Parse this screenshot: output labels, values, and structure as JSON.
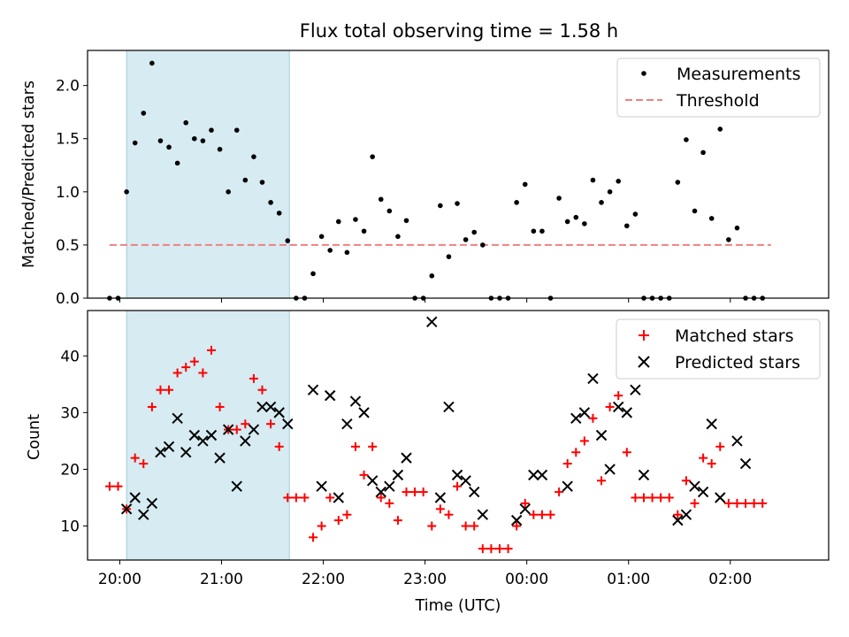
{
  "figure": {
    "title": "Flux total observing time = 1.58 h",
    "xlabel": "Time (UTC)"
  },
  "chart_data": [
    {
      "type": "scatter",
      "panel": "top",
      "ylabel": "Matched/Predicted stars",
      "xlim": [
        "19:41",
        "02:58"
      ],
      "ylim": [
        0,
        2.33
      ],
      "ytick_labels": [
        "0.0",
        "0.5",
        "1.0",
        "1.5",
        "2.0"
      ],
      "ytick_values": [
        0,
        0.5,
        1.0,
        1.5,
        2.0
      ],
      "xtick_labels": [
        "20:00",
        "21:00",
        "22:00",
        "23:00",
        "00:00",
        "01:00",
        "02:00"
      ],
      "shaded_span": [
        "20:04",
        "21:40"
      ],
      "shade_color": "#add8e6",
      "legend_placement": "top-right",
      "series": [
        {
          "name": "Measurements",
          "marker": "dot",
          "color": "#000000",
          "x": [
            "19:54",
            "19:59",
            "20:04",
            "20:09",
            "20:14",
            "20:19",
            "20:24",
            "20:29",
            "20:34",
            "20:39",
            "20:44",
            "20:49",
            "20:54",
            "20:59",
            "21:04",
            "21:09",
            "21:14",
            "21:19",
            "21:24",
            "21:29",
            "21:34",
            "21:39",
            "21:44",
            "21:49",
            "21:54",
            "21:59",
            "22:04",
            "22:09",
            "22:14",
            "22:19",
            "22:24",
            "22:29",
            "22:34",
            "22:39",
            "22:44",
            "22:49",
            "22:54",
            "22:59",
            "23:04",
            "23:09",
            "23:14",
            "23:19",
            "23:24",
            "23:29",
            "23:34",
            "23:39",
            "23:44",
            "23:49",
            "23:54",
            "23:59",
            "00:04",
            "00:09",
            "00:14",
            "00:19",
            "00:24",
            "00:29",
            "00:34",
            "00:39",
            "00:44",
            "00:49",
            "00:54",
            "00:59",
            "01:04",
            "01:09",
            "01:14",
            "01:19",
            "01:24",
            "01:29",
            "01:34",
            "01:39",
            "01:44",
            "01:49",
            "01:54",
            "01:59",
            "02:04",
            "02:09",
            "02:14",
            "02:19"
          ],
          "y": [
            0,
            0,
            1.0,
            1.46,
            1.74,
            2.21,
            1.48,
            1.42,
            1.27,
            1.65,
            1.5,
            1.48,
            1.58,
            1.4,
            1.0,
            1.58,
            1.11,
            1.33,
            1.09,
            0.9,
            0.8,
            0.54,
            0,
            0,
            0.23,
            0.58,
            0.45,
            0.72,
            0.43,
            0.74,
            0.63,
            1.33,
            0.93,
            0.82,
            0.58,
            0.73,
            0,
            0,
            0.21,
            0.87,
            0.39,
            0.89,
            0.55,
            0.62,
            0.5,
            0,
            0,
            0,
            0.9,
            1.07,
            0.63,
            0.63,
            0,
            0.94,
            0.72,
            0.76,
            0.7,
            1.11,
            0.9,
            1.0,
            1.1,
            0.68,
            0.79,
            0,
            0,
            0,
            0,
            1.09,
            1.49,
            0.82,
            1.37,
            0.75,
            1.59,
            0.55,
            0.66,
            0,
            0,
            0
          ]
        },
        {
          "name": "Threshold",
          "style": "dashed",
          "color": "#f08080",
          "x": [
            "19:54",
            "02:24"
          ],
          "y": [
            0.5,
            0.5
          ]
        }
      ]
    },
    {
      "type": "scatter",
      "panel": "bottom",
      "ylabel": "Count",
      "xlim": [
        "19:41",
        "02:58"
      ],
      "ylim": [
        4,
        48
      ],
      "ytick_labels": [
        "10",
        "20",
        "30",
        "40"
      ],
      "ytick_values": [
        10,
        20,
        30,
        40
      ],
      "xtick_labels": [
        "20:00",
        "21:00",
        "22:00",
        "23:00",
        "00:00",
        "01:00",
        "02:00"
      ],
      "shaded_span": [
        "20:04",
        "21:40"
      ],
      "shade_color": "#add8e6",
      "legend_placement": "top-right",
      "series": [
        {
          "name": "Matched stars",
          "marker": "plus",
          "color": "#ff0000",
          "x": [
            "19:54",
            "19:59",
            "20:04",
            "20:09",
            "20:14",
            "20:19",
            "20:24",
            "20:29",
            "20:34",
            "20:39",
            "20:44",
            "20:49",
            "20:54",
            "20:59",
            "21:04",
            "21:09",
            "21:14",
            "21:19",
            "21:24",
            "21:29",
            "21:34",
            "21:39",
            "21:44",
            "21:49",
            "21:54",
            "21:59",
            "22:04",
            "22:09",
            "22:14",
            "22:19",
            "22:24",
            "22:29",
            "22:34",
            "22:39",
            "22:44",
            "22:49",
            "22:54",
            "22:59",
            "23:04",
            "23:09",
            "23:14",
            "23:19",
            "23:24",
            "23:29",
            "23:34",
            "23:39",
            "23:44",
            "23:49",
            "23:54",
            "23:59",
            "00:04",
            "00:09",
            "00:14",
            "00:19",
            "00:24",
            "00:29",
            "00:34",
            "00:39",
            "00:44",
            "00:49",
            "00:54",
            "00:59",
            "01:04",
            "01:09",
            "01:14",
            "01:19",
            "01:24",
            "01:29",
            "01:34",
            "01:39",
            "01:44",
            "01:49",
            "01:54",
            "01:59",
            "02:04",
            "02:09",
            "02:14",
            "02:19"
          ],
          "y": [
            17,
            17,
            13,
            22,
            21,
            31,
            34,
            34,
            37,
            38,
            39,
            37,
            41,
            31,
            27,
            27,
            28,
            36,
            34,
            28,
            24,
            15,
            15,
            15,
            8,
            10,
            15,
            11,
            12,
            24,
            19,
            24,
            15,
            14,
            11,
            16,
            16,
            16,
            10,
            13,
            12,
            17,
            10,
            10,
            6,
            6,
            6,
            6,
            10,
            14,
            12,
            12,
            12,
            16,
            21,
            23,
            25,
            29,
            18,
            31,
            33,
            23,
            15,
            15,
            15,
            15,
            15,
            12,
            18,
            14,
            22,
            21,
            24,
            14,
            14,
            14,
            14,
            14
          ]
        },
        {
          "name": "Predicted stars",
          "marker": "x",
          "color": "#000000",
          "x": [
            "20:04",
            "20:09",
            "20:14",
            "20:19",
            "20:24",
            "20:29",
            "20:34",
            "20:39",
            "20:44",
            "20:49",
            "20:54",
            "20:59",
            "21:04",
            "21:09",
            "21:14",
            "21:19",
            "21:24",
            "21:29",
            "21:34",
            "21:39",
            "21:54",
            "21:59",
            "22:04",
            "22:09",
            "22:14",
            "22:19",
            "22:24",
            "22:29",
            "22:34",
            "22:39",
            "22:44",
            "22:49",
            "23:04",
            "23:09",
            "23:14",
            "23:19",
            "23:24",
            "23:29",
            "23:34",
            "23:54",
            "23:59",
            "00:04",
            "00:09",
            "00:24",
            "00:29",
            "00:34",
            "00:39",
            "00:44",
            "00:49",
            "00:54",
            "00:59",
            "01:04",
            "01:09",
            "01:29",
            "01:34",
            "01:39",
            "01:44",
            "01:49",
            "01:54",
            "02:04",
            "02:09"
          ],
          "y": [
            13,
            15,
            12,
            14,
            23,
            24,
            29,
            23,
            26,
            25,
            26,
            22,
            27,
            17,
            25,
            27,
            31,
            31,
            30,
            28,
            34,
            17,
            33,
            15,
            28,
            32,
            30,
            18,
            16,
            17,
            19,
            22,
            46,
            15,
            31,
            19,
            18,
            16,
            12,
            11,
            13,
            19,
            19,
            17,
            29,
            30,
            36,
            26,
            20,
            31,
            30,
            34,
            19,
            11,
            12,
            17,
            16,
            28,
            15,
            25,
            21
          ]
        }
      ]
    }
  ]
}
